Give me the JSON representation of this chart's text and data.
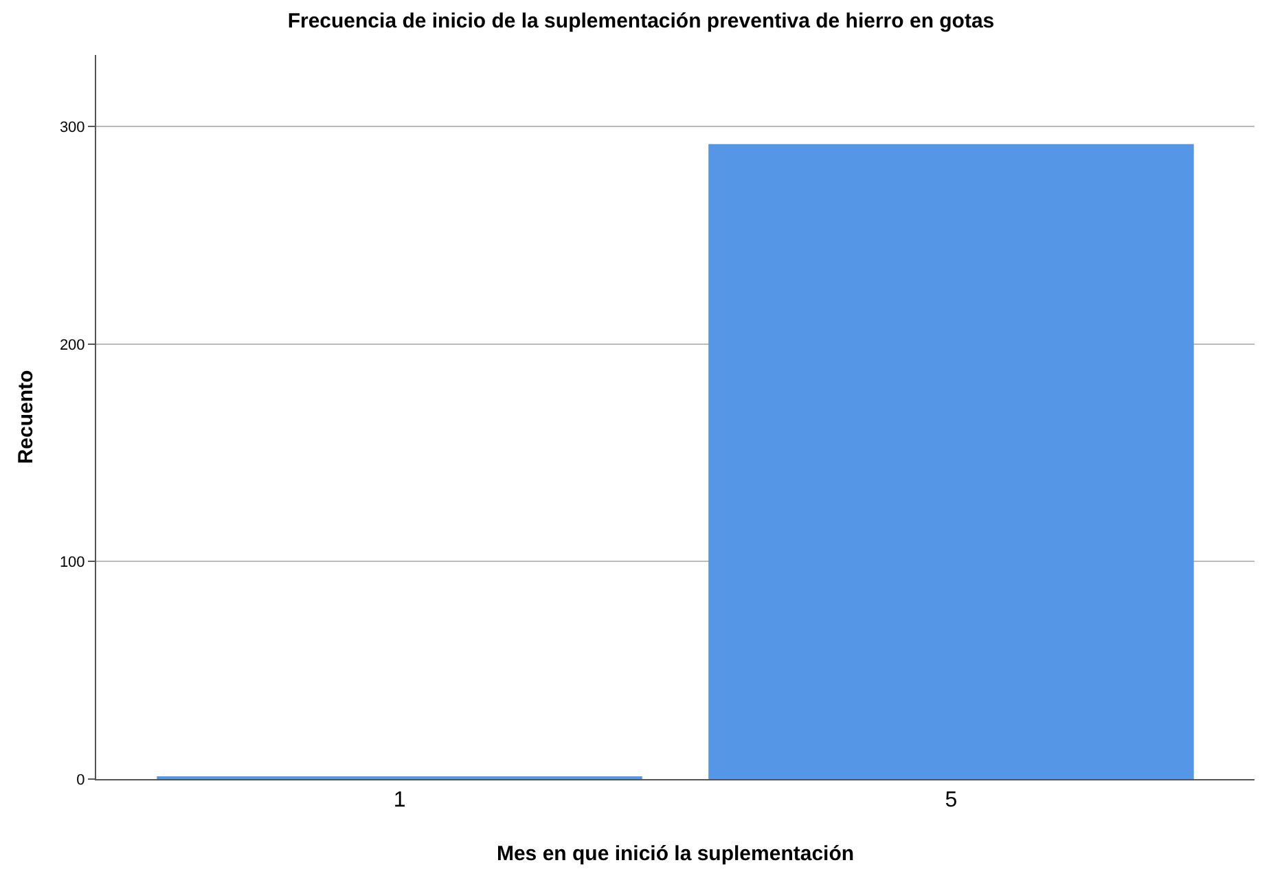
{
  "chart_data": {
    "type": "bar",
    "title": "Frecuencia de inicio de la suplementación preventiva de hierro en gotas",
    "xlabel": "Mes en que inició la suplementación",
    "ylabel": "Recuento",
    "categories": [
      "1",
      "5"
    ],
    "values": [
      1,
      292
    ],
    "color": "#5596e6",
    "ylim": [
      0,
      333
    ],
    "yticks": [
      0,
      100,
      200,
      300
    ],
    "grid": "y"
  }
}
